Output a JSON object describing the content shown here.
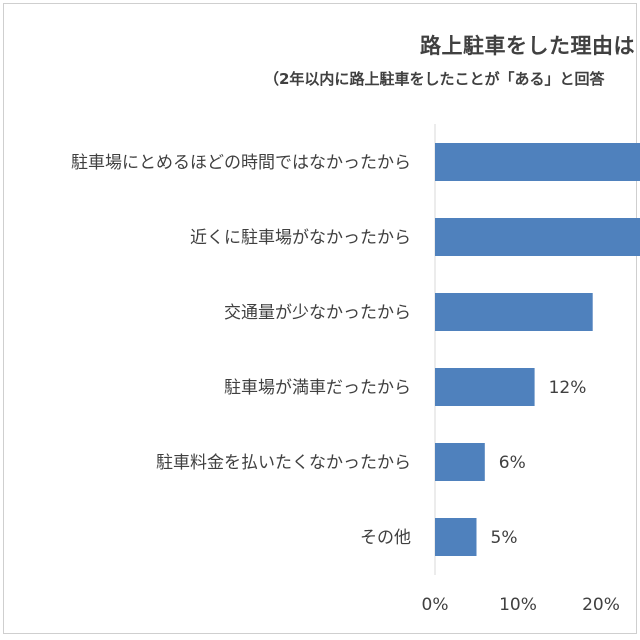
{
  "chart_data": {
    "type": "bar",
    "orientation": "horizontal",
    "title": "路上駐車をした理由は",
    "subtitle": "（2年以内に路上駐車をしたことが「ある」と回答",
    "categories": [
      "駐車場にとめるほどの時間ではなかったから",
      "近くに駐車場がなかったから",
      "交通量が少なかったから",
      "駐車場が満車だったから",
      "駐車料金を払いたくなかったから",
      "その他"
    ],
    "values": [
      null,
      null,
      19,
      12,
      6,
      5
    ],
    "value_labels": [
      "",
      "",
      "",
      "12%",
      "6%",
      "5%"
    ],
    "xlim": [
      0,
      30
    ],
    "x_ticks": [
      0,
      10,
      20
    ],
    "x_tick_labels": [
      "0%",
      "10%",
      "20%"
    ],
    "bar_color": "#4f81bd",
    "grid": false
  }
}
